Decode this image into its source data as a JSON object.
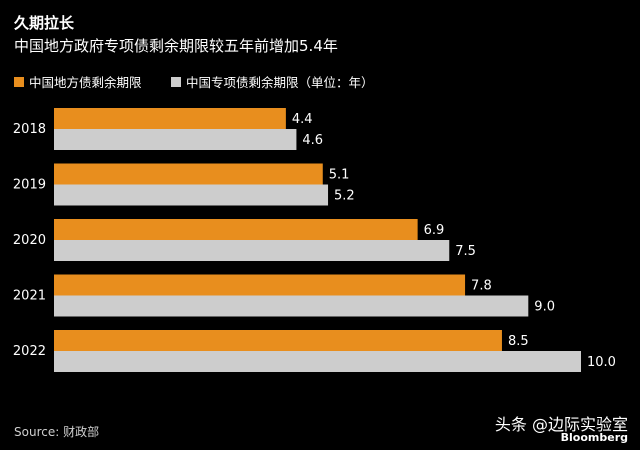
{
  "chart_data": {
    "type": "bar",
    "orientation": "horizontal",
    "title": "久期拉长",
    "subtitle": "中国地方政府专项债剩余期限较五年前增加5.4年",
    "legend_position": "top-left",
    "categories": [
      "2018",
      "2019",
      "2020",
      "2021",
      "2022"
    ],
    "series": [
      {
        "name": "中国地方债剩余期限",
        "color": "#e88e1e",
        "values": [
          4.4,
          5.1,
          6.9,
          7.8,
          8.5
        ]
      },
      {
        "name": "中国专项债剩余期限（单位：年）",
        "color": "#cdcdcd",
        "values": [
          4.6,
          5.2,
          7.5,
          9.0,
          10.0
        ]
      }
    ],
    "value_labels": [
      [
        "4.4",
        "5.1",
        "6.9",
        "7.8",
        "8.5"
      ],
      [
        "4.6",
        "5.2",
        "7.5",
        "9.0",
        "10.0"
      ]
    ],
    "xlim": [
      0,
      10.1
    ],
    "grid": false
  },
  "source": "Source: 财政部",
  "brand": "Bloomberg",
  "watermark": "头条 @边际实验室"
}
